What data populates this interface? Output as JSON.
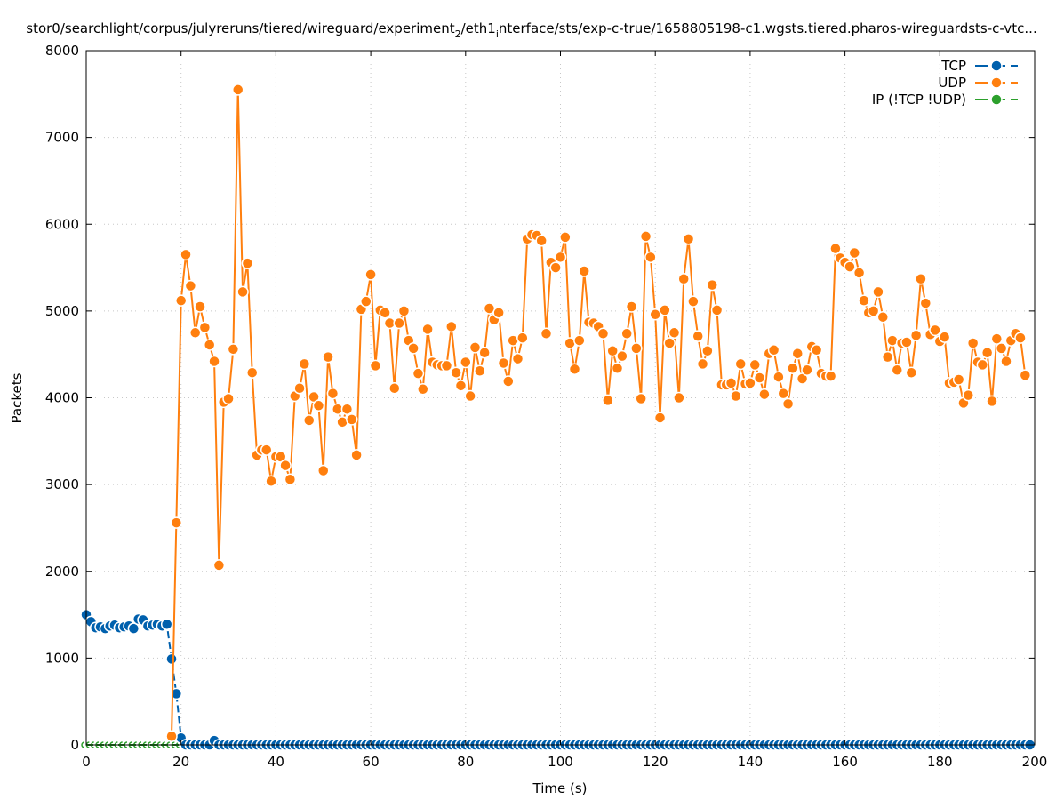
{
  "chart_data": {
    "type": "line",
    "title_parts": [
      "stor0/searchlight/corpus/julyreruns/tiered/wireguard/experiment",
      "2",
      "/eth1",
      "i",
      "nterface/sts/exp-c-true/1658805198-c1.wgsts.tiered.pharos-wireguardsts-c-vtc..."
    ],
    "xlabel": "Time (s)",
    "ylabel": "Packets",
    "xlim": [
      0,
      200
    ],
    "ylim": [
      0,
      8000
    ],
    "xticks": [
      "0",
      "20",
      "40",
      "60",
      "80",
      "100",
      "120",
      "140",
      "160",
      "180",
      "200"
    ],
    "yticks": [
      "0",
      "1000",
      "2000",
      "3000",
      "4000",
      "5000",
      "6000",
      "7000",
      "8000"
    ],
    "grid": true,
    "legend_position": "top-right",
    "series": [
      {
        "name": "TCP",
        "color": "#0060ad",
        "dashed": true,
        "x_start": 0,
        "values": [
          1500,
          1420,
          1350,
          1360,
          1340,
          1370,
          1380,
          1350,
          1360,
          1370,
          1340,
          1450,
          1440,
          1370,
          1380,
          1390,
          1370,
          1390,
          990,
          590,
          80,
          0,
          0,
          0,
          0,
          0,
          0,
          50,
          0,
          0,
          0,
          0,
          0,
          0,
          0,
          0,
          0,
          0,
          0,
          0,
          0,
          0,
          0,
          0,
          0,
          0,
          0,
          0,
          0,
          0,
          0,
          0,
          0,
          0,
          0,
          0,
          0,
          0,
          0,
          0,
          0,
          0,
          0,
          0,
          0,
          0,
          0,
          0,
          0,
          0,
          0,
          0,
          0,
          0,
          0,
          0,
          0,
          0,
          0,
          0,
          0,
          0,
          0,
          0,
          0,
          0,
          0,
          0,
          0,
          0,
          0,
          0,
          0,
          0,
          0,
          0,
          0,
          0,
          0,
          0,
          0,
          0,
          0,
          0,
          0,
          0,
          0,
          0,
          0,
          0,
          0,
          0,
          0,
          0,
          0,
          0,
          0,
          0,
          0,
          0,
          0,
          0,
          0,
          0,
          0,
          0,
          0,
          0,
          0,
          0,
          0,
          0,
          0,
          0,
          0,
          0,
          0,
          0,
          0,
          0,
          0,
          0,
          0,
          0,
          0,
          0,
          0,
          0,
          0,
          0,
          0,
          0,
          0,
          0,
          0,
          0,
          0,
          0,
          0,
          0,
          0,
          0,
          0,
          0,
          0,
          0,
          0,
          0,
          0,
          0,
          0,
          0,
          0,
          0,
          0,
          0,
          0,
          0,
          0,
          0,
          0,
          0,
          0,
          0,
          0,
          0,
          0,
          0,
          0,
          0,
          0,
          0,
          0,
          0,
          0,
          0,
          0,
          0,
          0,
          0
        ]
      },
      {
        "name": "UDP",
        "color": "#ff7f0e",
        "dashed": false,
        "x_start": 18,
        "values": [
          100,
          2560,
          5120,
          5650,
          5290,
          4750,
          5050,
          4810,
          4610,
          4420,
          2070,
          3950,
          3990,
          4560,
          7550,
          5220,
          5550,
          4290,
          3340,
          3400,
          3400,
          3040,
          3320,
          3320,
          3220,
          3060,
          4020,
          4110,
          4390,
          3740,
          4010,
          3910,
          3160,
          4470,
          4050,
          3870,
          3720,
          3870,
          3750,
          3340,
          5020,
          5110,
          5420,
          4370,
          5010,
          4980,
          4860,
          4110,
          4860,
          5000,
          4660,
          4570,
          4280,
          4100,
          4790,
          4410,
          4380,
          4370,
          4370,
          4820,
          4290,
          4140,
          4410,
          4020,
          4580,
          4310,
          4520,
          5030,
          4900,
          4980,
          4400,
          4190,
          4660,
          4450,
          4690,
          5830,
          5880,
          5870,
          5810,
          4740,
          5560,
          5500,
          5620,
          5850,
          4630,
          4330,
          4660,
          5460,
          4870,
          4860,
          4820,
          4740,
          3970,
          4540,
          4340,
          4480,
          4740,
          5050,
          4570,
          3990,
          5860,
          5620,
          4960,
          3770,
          5010,
          4630,
          4750,
          4000,
          5370,
          5830,
          5110,
          4710,
          4390,
          4540,
          5300,
          5010,
          4150,
          4150,
          4170,
          4020,
          4390,
          4160,
          4170,
          4380,
          4230,
          4040,
          4510,
          4550,
          4240,
          4050,
          3930,
          4340,
          4510,
          4220,
          4320,
          4590,
          4550,
          4280,
          4250,
          4250,
          5720,
          5610,
          5560,
          5510,
          5670,
          5440,
          5120,
          4980,
          5000,
          5220,
          4930,
          4470,
          4660,
          4320,
          4630,
          4640,
          4290,
          4720,
          5370,
          5090,
          4730,
          4780,
          4650,
          4700,
          4170,
          4180,
          4210,
          3940,
          4030,
          4630,
          4410,
          4380,
          4520,
          3960,
          4680,
          4570,
          4420,
          4660,
          4740,
          4690,
          4260
        ]
      },
      {
        "name": "IP (!TCP  !UDP)",
        "color": "#2ca02c",
        "dashed": true,
        "x_start": 0,
        "values": [
          0,
          0,
          0,
          0,
          0,
          0,
          0,
          0,
          0,
          0,
          0,
          0,
          0,
          0,
          0,
          0,
          0,
          0,
          0,
          0,
          0,
          0,
          0,
          0,
          0,
          0,
          0,
          0,
          0,
          0,
          0,
          0,
          0,
          0,
          0,
          0,
          0,
          0,
          0,
          0,
          0,
          0,
          0,
          0,
          0,
          0,
          0,
          0,
          0,
          0,
          0,
          0,
          0,
          0,
          0,
          0,
          0,
          0,
          0,
          0,
          0,
          0,
          0,
          0,
          0,
          0,
          0,
          0,
          0,
          0,
          0,
          0,
          0,
          0,
          0,
          0,
          0,
          0,
          0,
          0,
          0,
          0,
          0,
          0,
          0,
          0,
          0,
          0,
          0,
          0,
          0,
          0,
          0,
          0,
          0,
          0,
          0,
          0,
          0,
          0,
          0,
          0,
          0,
          0,
          0,
          0,
          0,
          0,
          0,
          0,
          0,
          0,
          0,
          0,
          0,
          0,
          0,
          0,
          0,
          0,
          0,
          0,
          0,
          0,
          0,
          0,
          0,
          0,
          0,
          0,
          0,
          0,
          0,
          0,
          0,
          0,
          0,
          0,
          0,
          0,
          0,
          0,
          0,
          0,
          0,
          0,
          0,
          0,
          0,
          0,
          0,
          0,
          0,
          0,
          0,
          0,
          0,
          0,
          0,
          0,
          0,
          0,
          0,
          0,
          0,
          0,
          0,
          0,
          0,
          0,
          0,
          0,
          0,
          0,
          0,
          0,
          0,
          0,
          0,
          0,
          0,
          0,
          0,
          0,
          0,
          0,
          0,
          0,
          0,
          0,
          0,
          0,
          0,
          0,
          0,
          0,
          0,
          0,
          0,
          0
        ]
      }
    ]
  }
}
